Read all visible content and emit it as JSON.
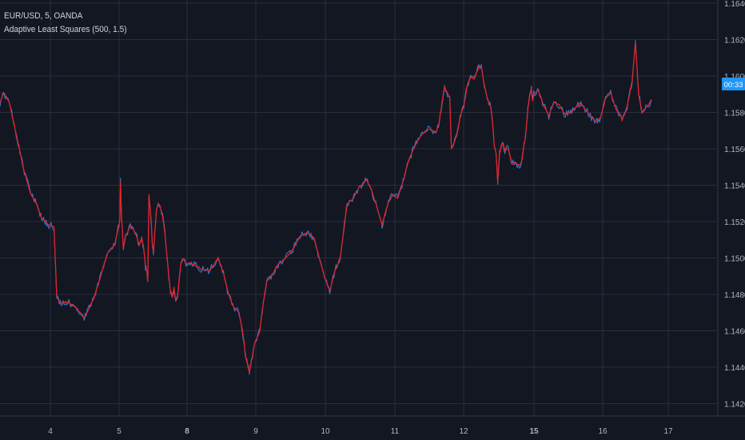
{
  "legend": {
    "symbol_line": "EUR/USD, 5, OANDA",
    "indicator_line": "Adaptive Least Squares (500, 1.5)"
  },
  "price_badge": "00:33",
  "colors": {
    "background": "#131722",
    "grid": "#2a2e39",
    "axis_text": "#b2b5be",
    "price_series": "#2f7fd6",
    "indicator_series": "#e3242b",
    "badge": "#2196f3"
  },
  "chart_data": {
    "type": "line",
    "x_tick_labels": [
      "4",
      "5",
      "8",
      "9",
      "10",
      "11",
      "12",
      "15",
      "16",
      "17"
    ],
    "x_tick_emphasis": [
      false,
      false,
      true,
      false,
      false,
      false,
      false,
      true,
      false,
      false
    ],
    "y_tick_labels": [
      "1.1640",
      "1.1620",
      "1.1600",
      "1.1580",
      "1.1560",
      "1.1540",
      "1.1520",
      "1.1500",
      "1.1480",
      "1.1460",
      "1.1440",
      "1.1420"
    ],
    "ylim": [
      1.1417,
      1.1641
    ],
    "xlim": [
      3.3,
      17.5
    ],
    "grid": true,
    "series": [
      {
        "name": "EUR/USD",
        "x": [
          3.3,
          3.4,
          3.5,
          3.6,
          3.7,
          3.8,
          3.9,
          4.0,
          4.1,
          4.2,
          4.3,
          4.4,
          4.5,
          4.6,
          4.7,
          4.8,
          4.9,
          5.0,
          5.2,
          5.4,
          5.5,
          5.6,
          5.7,
          5.8,
          6.0,
          6.2,
          6.4,
          6.6,
          6.8,
          7.0,
          7.2,
          7.4,
          7.6,
          7.8,
          8.0,
          8.2,
          8.3,
          8.5,
          8.8,
          9.0,
          9.2,
          9.4,
          9.5,
          9.6,
          9.7,
          9.8,
          9.9,
          10.0,
          10.2,
          10.3,
          10.5,
          10.7,
          10.8,
          10.9,
          11.0,
          11.1,
          11.2,
          11.3,
          11.4,
          11.5,
          11.6,
          11.7,
          11.8,
          11.9,
          12.0,
          12.2,
          12.3,
          12.5,
          12.7,
          12.8,
          12.9,
          13.0,
          13.1,
          13.2,
          13.3,
          13.4,
          13.5,
          13.6,
          13.7,
          13.8,
          14.0,
          14.2,
          14.4,
          14.6,
          14.8,
          15.0,
          15.2,
          15.4,
          15.6,
          15.8,
          16.0,
          16.2,
          16.4,
          16.6,
          16.8,
          17.0
        ],
        "values": [
          1.1585,
          1.1565,
          1.1545,
          1.1525,
          1.1518,
          1.1475,
          1.1473,
          1.1478,
          1.1505,
          1.151,
          1.153,
          1.1512,
          1.1505,
          1.1515,
          1.152,
          1.1518,
          1.151,
          1.15,
          1.153,
          1.1525,
          1.152,
          1.151,
          1.1498,
          1.1485,
          1.148,
          1.1492,
          1.1495,
          1.1493,
          1.1438,
          1.1455,
          1.1495,
          1.1503,
          1.1512,
          1.151,
          1.15,
          1.152,
          1.154,
          1.1528,
          1.1545,
          1.154,
          1.156,
          1.157,
          1.1555,
          1.157,
          1.158,
          1.159,
          1.1595,
          1.16,
          1.1598,
          1.1605,
          1.16,
          1.1585,
          1.1575,
          1.156,
          1.1552,
          1.155,
          1.1555,
          1.155,
          1.1557,
          1.1575,
          1.1595,
          1.1592,
          1.1585,
          1.158,
          1.1578,
          1.1585,
          1.1588,
          1.158,
          1.1577,
          1.159,
          1.1615,
          1.158,
          1.1585,
          1.159,
          1.159,
          1.159,
          1.159,
          1.159,
          1.159,
          1.159,
          1.159,
          1.159,
          1.159,
          1.159,
          1.159,
          1.159,
          1.159,
          1.159,
          1.159,
          1.159,
          1.159,
          1.159,
          1.159,
          1.159,
          1.159,
          1.159
        ]
      },
      {
        "name": "Adaptive Least Squares",
        "values": []
      }
    ]
  }
}
